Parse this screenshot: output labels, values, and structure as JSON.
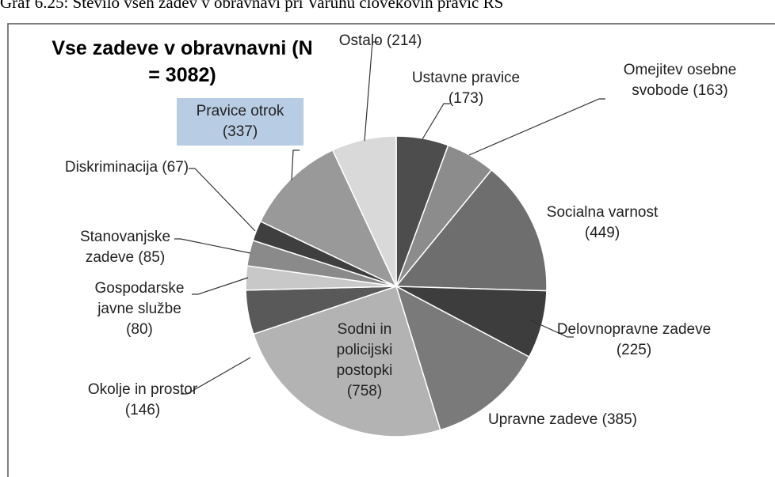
{
  "chart_data": {
    "type": "pie",
    "caption": "Graf 6.25: Število vseh zadev v obravnavi pri Varuhu človekovih pravic RS",
    "title": "Vse zadeve v obravnavni (N = 3082)",
    "categories": [
      "Ustavne pravice",
      "Omejitev osebne svobode",
      "Socialna varnost",
      "Delovnopravne zadeve",
      "Upravne zadeve",
      "Sodni in policijski postopki",
      "Okolje in prostor",
      "Gospodarske javne službe",
      "Stanovanjske zadeve",
      "Diskriminacija",
      "Pravice otrok",
      "Ostalo"
    ],
    "values": [
      173,
      163,
      449,
      225,
      385,
      758,
      146,
      80,
      85,
      67,
      337,
      214
    ],
    "value_labels": [
      "(173)",
      "(163)",
      "(449)",
      "(225)",
      "(385)",
      "(758)",
      "(146)",
      "(80)",
      "(85)",
      "(67)",
      "(337)",
      "(214)"
    ],
    "colors": [
      "#4d4d4d",
      "#8c8c8c",
      "#6e6e6e",
      "#3d3d3d",
      "#7a7a7a",
      "#b3b3b3",
      "#595959",
      "#c8c8c8",
      "#8a8a8a",
      "#3f3f3f",
      "#999999",
      "#d9d9d9"
    ]
  }
}
